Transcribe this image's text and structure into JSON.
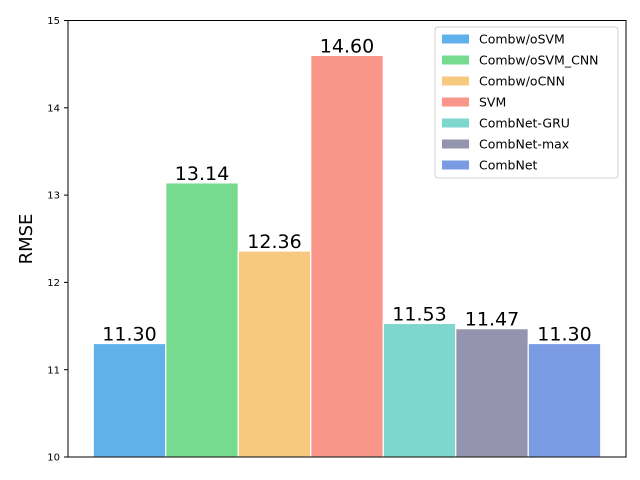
{
  "chart_data": {
    "type": "bar",
    "title": "",
    "xlabel": "",
    "ylabel": "RMSE",
    "ylim": [
      10,
      15
    ],
    "yticks": [
      10,
      11,
      12,
      13,
      14,
      15
    ],
    "grid": false,
    "legend_position": "top-right",
    "series": [
      {
        "name": "Combw/oSVM",
        "value": 11.3,
        "label": "11.30",
        "color": "#5fb1ec"
      },
      {
        "name": "Combw/oSVM_CNN",
        "value": 13.14,
        "label": "13.14",
        "color": "#77db8f"
      },
      {
        "name": "Combw/oCNN",
        "value": 12.36,
        "label": "12.36",
        "color": "#f7c97f"
      },
      {
        "name": "SVM",
        "value": 14.6,
        "label": "14.60",
        "color": "#f99589"
      },
      {
        "name": "CombNet-GRU",
        "value": 11.53,
        "label": "11.53",
        "color": "#7ed7cf"
      },
      {
        "name": "CombNet-max",
        "value": 11.47,
        "label": "11.47",
        "color": "#9494ae"
      },
      {
        "name": "CombNet",
        "value": 11.3,
        "label": "11.30",
        "color": "#7a9be3"
      }
    ]
  }
}
